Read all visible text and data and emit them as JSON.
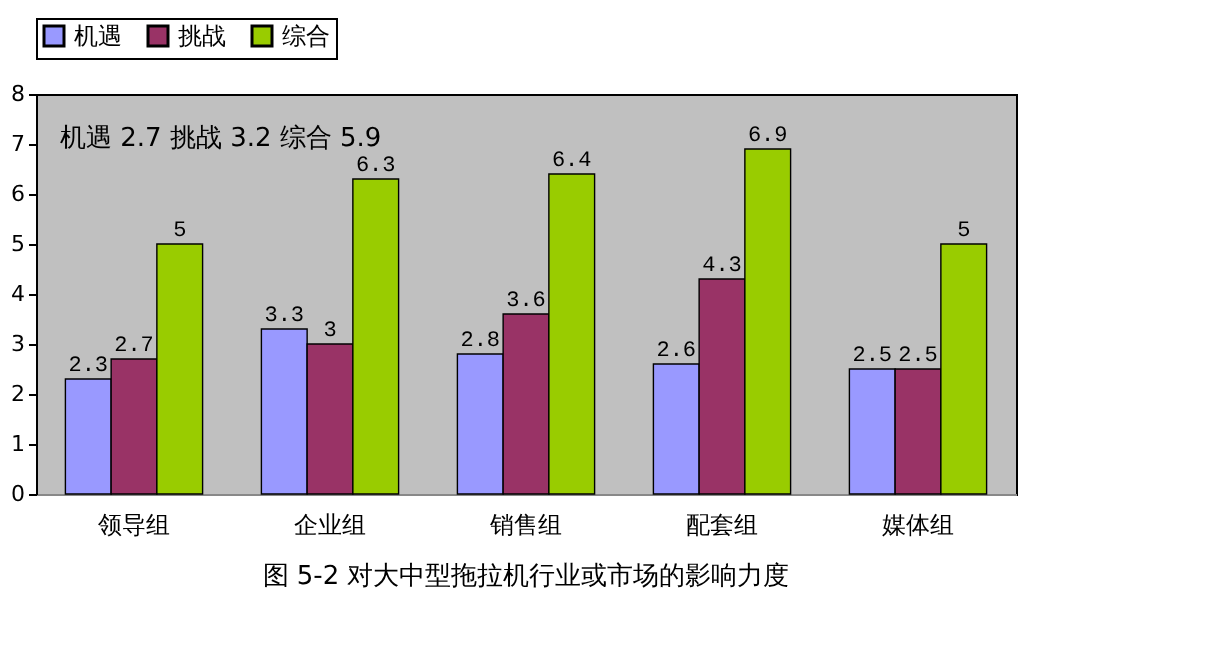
{
  "chart_data": {
    "type": "bar",
    "title": "图 5-2 对大中型拖拉机行业或市场的影响力度",
    "categories": [
      "领导组",
      "企业组",
      "销售组",
      "配套组",
      "媒体组"
    ],
    "series": [
      {
        "name": "机遇",
        "color": "#9999ff",
        "values": [
          2.3,
          3.3,
          2.8,
          2.6,
          2.5
        ]
      },
      {
        "name": "挑战",
        "color": "#993366",
        "values": [
          2.7,
          3,
          3.6,
          4.3,
          2.5
        ]
      },
      {
        "name": "综合",
        "color": "#99cc00",
        "values": [
          5,
          6.3,
          6.4,
          6.9,
          5
        ]
      }
    ],
    "ylim": [
      0,
      8
    ],
    "yticks": [
      0,
      1,
      2,
      3,
      4,
      5,
      6,
      7,
      8
    ],
    "grid": false,
    "legend": "top",
    "data_labels": true,
    "annotations": [
      "机遇 2.7   挑战 3.2    综合 5.9"
    ]
  }
}
